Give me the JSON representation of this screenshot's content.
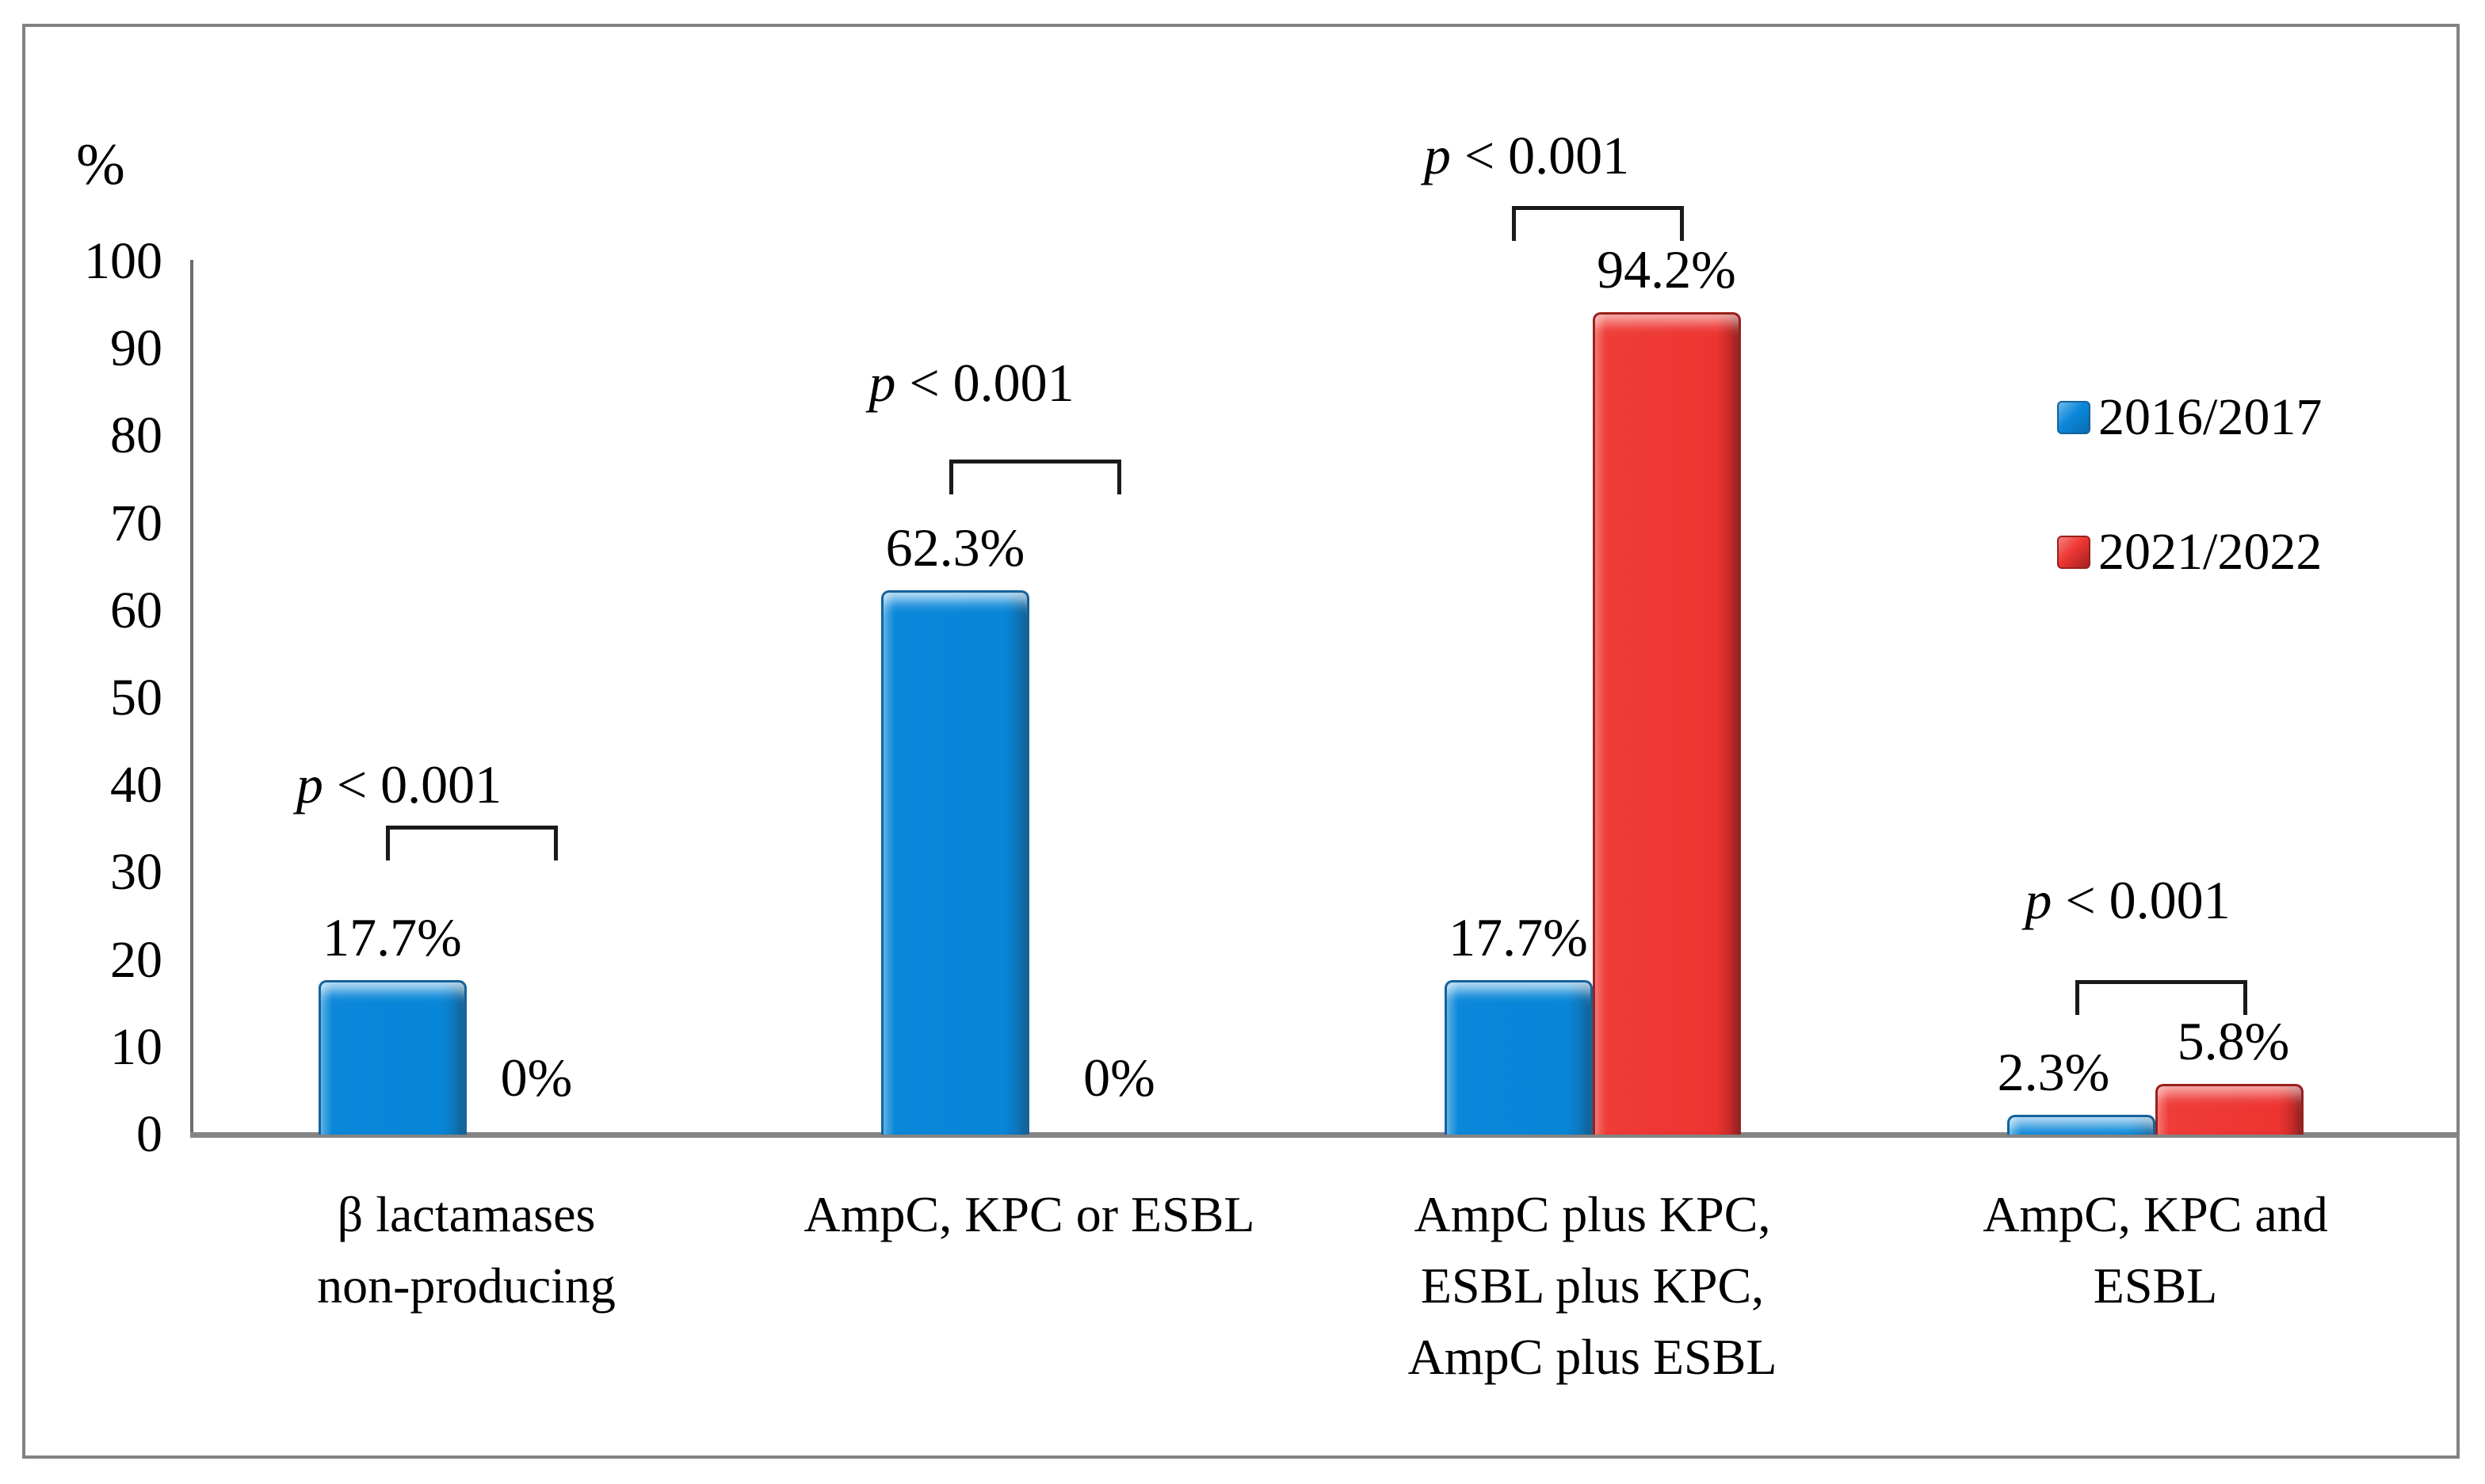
{
  "chart_data": {
    "type": "bar",
    "title": "",
    "ylabel": "%",
    "ylim": [
      0,
      100
    ],
    "y_ticks": [
      0,
      10,
      20,
      30,
      40,
      50,
      60,
      70,
      80,
      90,
      100
    ],
    "grid": false,
    "legend_position": "right",
    "categories": [
      "β lactamases non-producing",
      "AmpC, KPC or ESBL",
      "AmpC plus KPC, ESBL plus KPC, AmpC plus ESBL",
      "AmpC, KPC and ESBL"
    ],
    "category_lines": [
      [
        "β lactamases",
        "non-producing"
      ],
      [
        "AmpC, KPC or ESBL"
      ],
      [
        "AmpC plus KPC,",
        "ESBL plus KPC,",
        "AmpC plus  ESBL"
      ],
      [
        "AmpC, KPC and",
        "ESBL"
      ]
    ],
    "series": [
      {
        "name": "2016/2017",
        "color": "#0885D8",
        "values": [
          17.7,
          62.3,
          17.7,
          2.3
        ]
      },
      {
        "name": "2021/2022",
        "color": "#ED3431",
        "values": [
          0,
          0,
          94.2,
          5.8
        ]
      }
    ],
    "bar_labels": [
      [
        "17.7%",
        "0%"
      ],
      [
        "62.3%",
        "0%"
      ],
      [
        "17.7%",
        "94.2%"
      ],
      [
        "2.3%",
        "5.8%"
      ]
    ],
    "p_values": [
      "p < 0.001",
      "p < 0.001",
      "p < 0.001",
      "p < 0.001"
    ]
  },
  "colors": {
    "axis": "#6d6d6d",
    "baseline": "#848484",
    "figure_border": "#828282",
    "bracket": "#1a1a1a"
  }
}
